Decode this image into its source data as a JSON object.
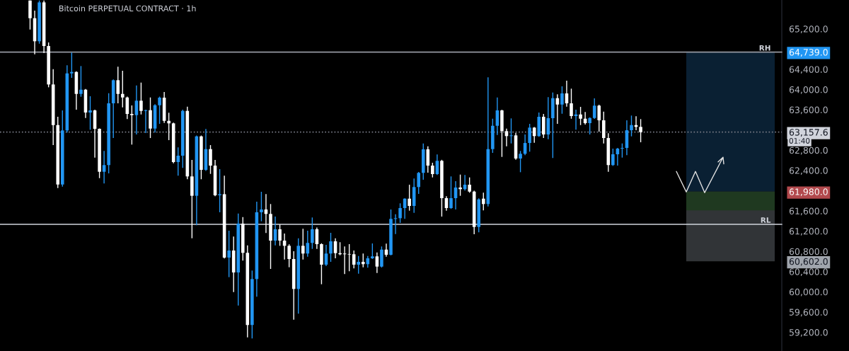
{
  "chart_data": {
    "type": "candlestick",
    "title": "Bitcoin PERPETUAL CONTRACT · 1h",
    "categories": [
      null,
      null,
      null,
      null,
      null,
      null,
      null,
      null,
      null,
      null,
      null,
      null,
      null,
      null,
      null,
      null,
      null,
      null,
      null,
      null,
      null,
      null,
      null,
      null,
      null,
      null,
      null,
      null,
      null,
      null,
      null,
      null,
      null,
      null,
      null,
      null,
      null,
      null,
      null,
      null,
      null,
      null,
      null,
      null,
      null,
      null,
      null,
      null,
      null,
      null,
      null,
      null,
      null,
      null,
      null,
      null,
      null,
      null,
      null,
      null,
      null,
      null,
      null,
      null,
      null,
      null,
      null,
      null,
      null,
      null,
      null,
      null,
      null,
      null,
      null,
      null,
      null,
      null,
      null,
      null,
      null,
      null,
      null,
      null,
      null,
      null,
      null,
      null,
      null,
      null,
      null,
      null,
      null,
      null,
      null,
      null,
      null,
      null,
      null,
      null,
      null,
      null,
      null,
      null,
      null,
      null,
      null,
      null,
      null,
      null,
      null,
      null,
      null,
      null,
      null,
      null,
      null,
      null,
      null,
      null,
      null,
      null,
      null,
      null,
      null,
      null,
      null,
      null,
      null,
      null,
      null,
      null,
      null,
      null,
      null,
      null,
      null,
      null,
      null,
      null,
      null,
      null,
      null,
      null,
      null,
      null,
      null,
      null,
      null,
      null,
      null,
      null,
      null,
      null,
      null,
      null,
      null,
      null,
      null,
      null,
      null,
      null,
      null,
      null,
      null,
      null,
      null,
      null,
      null
    ],
    "ohlc": [
      null,
      null,
      null,
      null,
      null,
      null,
      [
        65760,
        65760,
        65186,
        65410
      ],
      [
        65410,
        65560,
        64696,
        64954
      ],
      [
        64954,
        65760,
        64906,
        65723
      ],
      [
        65723,
        65760,
        64720,
        64860
      ],
      [
        64860,
        64930,
        64044,
        64100
      ],
      [
        64100,
        64403,
        62901,
        63297
      ],
      [
        63297,
        63461,
        62052,
        62122
      ],
      [
        62122,
        63587,
        62080,
        63191
      ],
      [
        63191,
        64478,
        63150,
        64319
      ],
      [
        64319,
        64730,
        64230,
        64347
      ],
      [
        64347,
        64360,
        63601,
        63913
      ],
      [
        63913,
        64464,
        63857,
        63997
      ],
      [
        63997,
        64010,
        63437,
        63545
      ],
      [
        63545,
        63867,
        63205,
        63587
      ],
      [
        63587,
        63600,
        62654,
        63223
      ],
      [
        63223,
        63230,
        62248,
        62374
      ],
      [
        62374,
        62785,
        62142,
        62506
      ],
      [
        62506,
        63927,
        62342,
        63727
      ],
      [
        63727,
        64200,
        63041,
        64184
      ],
      [
        64184,
        64450,
        63727,
        63913
      ],
      [
        63913,
        64370,
        63647,
        63843
      ],
      [
        63843,
        63860,
        63415,
        63517
      ],
      [
        63517,
        63685,
        62911,
        63494
      ],
      [
        63494,
        64081,
        63111,
        63779
      ],
      [
        63779,
        64137,
        63507,
        63577
      ],
      [
        63577,
        63600,
        63139,
        63591
      ],
      [
        63591,
        63843,
        63041,
        63228
      ],
      [
        63228,
        63710,
        63149,
        63689
      ],
      [
        63689,
        63860,
        63321,
        63839
      ],
      [
        63839,
        63951,
        63340,
        63381
      ],
      [
        63381,
        63541,
        62999,
        63331
      ],
      [
        63331,
        63345,
        62542,
        62566
      ],
      [
        62566,
        62856,
        62296,
        62692
      ],
      [
        62692,
        63600,
        62450,
        63577
      ],
      [
        63577,
        63661,
        62226,
        62282
      ],
      [
        62282,
        62608,
        61059,
        61899
      ],
      [
        61899,
        63090,
        61316,
        63074
      ],
      [
        63074,
        63090,
        62226,
        62412
      ],
      [
        62412,
        63219,
        62390,
        62822
      ],
      [
        62822,
        62901,
        62332,
        62496
      ],
      [
        62496,
        62608,
        61890,
        61909
      ],
      [
        61909,
        62426,
        61573,
        61930
      ],
      [
        61930,
        62296,
        60660,
        60677
      ],
      [
        60677,
        61209,
        60290,
        60817
      ],
      [
        60817,
        61093,
        59996,
        60383
      ],
      [
        60383,
        61549,
        59730,
        61349
      ],
      [
        61349,
        61479,
        60617,
        60771
      ],
      [
        60771,
        60919,
        59100,
        59344
      ],
      [
        59344,
        60421,
        59078,
        60253
      ],
      [
        60253,
        61782,
        59903,
        61573
      ],
      [
        61573,
        61978,
        61395,
        61628
      ],
      [
        61628,
        61932,
        61162,
        61540
      ],
      [
        61540,
        61736,
        60453,
        61013
      ],
      [
        61013,
        61488,
        60919,
        61237
      ],
      [
        61237,
        61331,
        60910,
        61013
      ],
      [
        61013,
        61153,
        60639,
        60910
      ],
      [
        60910,
        60940,
        60486,
        60649
      ],
      [
        60649,
        60803,
        59450,
        60057
      ],
      [
        60057,
        61059,
        59568,
        60910
      ],
      [
        60910,
        61246,
        60639,
        60757
      ],
      [
        60757,
        61209,
        60695,
        60967
      ],
      [
        60967,
        61470,
        60849,
        61237
      ],
      [
        61237,
        61270,
        60849,
        60943
      ],
      [
        60943,
        60960,
        60150,
        60537
      ],
      [
        60537,
        60929,
        60510,
        60757
      ],
      [
        60757,
        61167,
        60593,
        60999
      ],
      [
        60999,
        61059,
        60663,
        60765
      ],
      [
        60765,
        60981,
        60723,
        60743
      ],
      [
        60757,
        60897,
        60351,
        60743
      ],
      [
        60748,
        60943,
        60407,
        60738
      ],
      [
        60743,
        60817,
        60463,
        60537
      ],
      [
        60537,
        60710,
        60360,
        60593
      ],
      [
        60593,
        60757,
        60486,
        60547
      ],
      [
        60547,
        60710,
        60477,
        60663
      ],
      [
        60663,
        60957,
        60650,
        60701
      ],
      [
        60701,
        60780,
        60374,
        60499
      ],
      [
        60499,
        60897,
        60480,
        60835
      ],
      [
        60835,
        60952,
        60695,
        60733
      ],
      [
        60733,
        61628,
        60720,
        61442
      ],
      [
        61442,
        61535,
        61143,
        61456
      ],
      [
        61456,
        61750,
        61363,
        61656
      ],
      [
        61656,
        61850,
        61442,
        61842
      ],
      [
        61842,
        62118,
        61605,
        61698
      ],
      [
        61698,
        62240,
        61563,
        62072
      ],
      [
        62072,
        62370,
        61936,
        62352
      ],
      [
        62352,
        62934,
        62216,
        62818
      ],
      [
        62818,
        62878,
        62356,
        62496
      ],
      [
        62496,
        62552,
        62262,
        62328
      ],
      [
        62328,
        62716,
        62310,
        62590
      ],
      [
        62590,
        62610,
        61488,
        61852
      ],
      [
        61852,
        61890,
        61605,
        61656
      ],
      [
        61656,
        62282,
        61640,
        61852
      ],
      [
        61852,
        62188,
        61628,
        62062
      ],
      [
        62062,
        62318,
        61899,
        62030
      ],
      [
        62030,
        62310,
        62002,
        62118
      ],
      [
        62118,
        62262,
        61960,
        61982
      ],
      [
        61982,
        62000,
        61139,
        61283
      ],
      [
        61283,
        61850,
        61176,
        61828
      ],
      [
        61842,
        61960,
        61610,
        61736
      ],
      [
        61736,
        64240,
        61689,
        62822
      ],
      [
        62822,
        63423,
        62747,
        63283
      ],
      [
        63283,
        63843,
        63102,
        63587
      ],
      [
        63587,
        63600,
        62668,
        63177
      ],
      [
        63177,
        63227,
        62878,
        63079
      ],
      [
        63079,
        63429,
        62934,
        63093
      ],
      [
        63093,
        63143,
        62612,
        62636
      ],
      [
        62636,
        62785,
        62365,
        62729
      ],
      [
        62729,
        63111,
        62701,
        62943
      ],
      [
        62943,
        63321,
        62771,
        63247
      ],
      [
        63247,
        63260,
        62948,
        63079
      ],
      [
        63079,
        63545,
        63065,
        63461
      ],
      [
        63461,
        63517,
        63041,
        63111
      ],
      [
        63111,
        63849,
        63018,
        63433
      ],
      [
        63433,
        63941,
        62646,
        63829
      ],
      [
        63829,
        63905,
        63321,
        63703
      ],
      [
        63703,
        64063,
        63521,
        63923
      ],
      [
        63923,
        64175,
        63661,
        63727
      ],
      [
        63727,
        64017,
        63423,
        63475
      ],
      [
        63475,
        63601,
        63205,
        63507
      ],
      [
        63507,
        63657,
        63297,
        63423
      ],
      [
        63423,
        63555,
        63307,
        63335
      ],
      [
        63335,
        63450,
        63111,
        63437
      ],
      [
        63437,
        63825,
        63420,
        63681
      ],
      [
        63681,
        63700,
        63167,
        63391
      ],
      [
        63391,
        63563,
        62934,
        63041
      ],
      [
        63041,
        63135,
        62374,
        62506
      ],
      [
        62506,
        62831,
        62490,
        62720
      ],
      [
        62720,
        62845,
        62496,
        62831
      ],
      [
        62831,
        62934,
        62654,
        62845
      ],
      [
        62845,
        63391,
        62701,
        63195
      ],
      [
        63195,
        63485,
        63074,
        63297
      ],
      [
        63297,
        63471,
        63195,
        63261
      ],
      [
        63261,
        63415,
        62957,
        63157.6
      ],
      null,
      null,
      null,
      null,
      null,
      null,
      null,
      null,
      null,
      null,
      null,
      null,
      null,
      null,
      null,
      null,
      null,
      null,
      null,
      null,
      null,
      null,
      null,
      null,
      null,
      null,
      null,
      null,
      null,
      null
    ],
    "colors": [
      null,
      null,
      null,
      null,
      null,
      null,
      "#ffffff",
      "#ffffff",
      "#2196f3",
      "#ffffff",
      "#ffffff",
      "#ffffff",
      "#ffffff",
      "#2196f3",
      "#2196f3",
      "#2196f3",
      "#ffffff",
      "#2196f3",
      "#ffffff",
      "#2196f3",
      "#ffffff",
      "#ffffff",
      "#2196f3",
      "#2196f3",
      "#2196f3",
      "#ffffff",
      "#ffffff",
      "#ffffff",
      "#ffffff",
      "#2196f3",
      "#ffffff",
      "#2196f3",
      "#ffffff",
      "#2196f3",
      "#2196f3",
      "#ffffff",
      "#ffffff",
      "#ffffff",
      "#2196f3",
      "#2196f3",
      "#ffffff",
      "#ffffff",
      "#2196f3",
      "#ffffff",
      "#2196f3",
      "#ffffff",
      "#ffffff",
      "#2196f3",
      "#ffffff",
      "#2196f3",
      "#ffffff",
      "#2196f3",
      "#ffffff",
      "#ffffff",
      "#2196f3",
      "#2196f3",
      "#2196f3",
      "#ffffff",
      "#ffffff",
      "#2196f3",
      "#ffffff",
      "#ffffff",
      "#ffffff",
      "#ffffff",
      "#2196f3",
      "#ffffff",
      "#2196f3",
      "#2196f3",
      "#ffffff",
      "#ffffff",
      "#2196f3",
      "#2196f3",
      "#ffffff",
      "#ffffff",
      "#ffffff",
      "#ffffff",
      "#ffffff",
      "#2196f3",
      "#ffffff",
      "#2196f3",
      "#2196f3",
      "#ffffff",
      "#2196f3",
      "#ffffff",
      "#2196f3",
      "#2196f3",
      "#2196f3",
      "#2196f3",
      "#ffffff",
      "#2196f3",
      "#2196f3",
      "#2196f3",
      "#ffffff",
      "#ffffff",
      "#2196f3",
      "#ffffff",
      "#ffffff",
      "#2196f3",
      "#2196f3",
      "#ffffff",
      "#2196f3",
      "#ffffff",
      "#ffffff",
      "#2196f3",
      "#ffffff",
      "#2196f3",
      "#2196f3",
      "#2196f3",
      "#ffffff",
      "#ffffff",
      "#2196f3",
      "#ffffff",
      "#2196f3",
      "#2196f3",
      "#2196f3",
      "#ffffff",
      "#2196f3",
      "#ffffff",
      "#2196f3",
      "#2196f3",
      "#ffffff",
      "#2196f3",
      "#ffffff",
      "#ffffff",
      "#2196f3",
      "#ffffff",
      "#ffffff",
      "#2196f3",
      "#2196f3",
      "#ffffff",
      "#ffffff",
      "#ffffff",
      "#2196f3",
      "#2196f3",
      "#2196f3",
      "#2196f3",
      "#2196f3",
      "#ffffff",
      "#ffffff",
      null,
      null,
      null,
      null,
      null,
      null,
      null,
      null,
      null,
      null,
      null,
      null,
      null,
      null,
      null,
      null,
      null,
      null,
      null,
      null,
      null,
      null,
      null,
      null,
      null,
      null,
      null,
      null,
      null,
      null
    ],
    "ylim": [
      58830,
      65770
    ],
    "yticks": [
      {
        "value": 59200,
        "label": "59,200.0"
      },
      {
        "value": 59600,
        "label": "59,600.0"
      },
      {
        "value": 60000,
        "label": "60,000.0"
      },
      {
        "value": 60400,
        "label": "60,400.0"
      },
      {
        "value": 60602,
        "label": "60,602.0"
      },
      {
        "value": 60800,
        "label": "60,800.0"
      },
      {
        "value": 61200,
        "label": "61,200.0"
      },
      {
        "value": 61600,
        "label": "61,600.0"
      },
      {
        "value": 61980,
        "label": "61,980.0"
      },
      {
        "value": 62400,
        "label": "62,400.0"
      },
      {
        "value": 62800,
        "label": "62,800.0"
      },
      {
        "value": 63157.6,
        "label": "63,157.6"
      },
      {
        "value": 63600,
        "label": "63,600.0"
      },
      {
        "value": 64000,
        "label": "64,000.0"
      },
      {
        "value": 64400,
        "label": "64,400.0"
      },
      {
        "value": 64739,
        "label": "64,739.0"
      },
      {
        "value": 65200,
        "label": "65,200.0"
      }
    ],
    "tick_labels": "y",
    "grid": false,
    "ref_lines": [
      {
        "axis": "y",
        "value": 64739,
        "label": "RH",
        "color": "#9598a1"
      },
      {
        "axis": "y",
        "value": 61335,
        "label": "RL",
        "color": "#d1d4dc"
      },
      {
        "axis": "y",
        "value": 63157.6,
        "color": "#787b86",
        "line_style": "dotted"
      }
    ],
    "bands": [
      {
        "axis": "y",
        "from": 61980,
        "to": 64739,
        "color": "#0b2339"
      },
      {
        "axis": "y",
        "from": 60602,
        "to": 61980,
        "color": "#363a3d"
      },
      {
        "axis": "y",
        "from": 61610,
        "to": 61980,
        "color": "#1e3a1e"
      }
    ],
    "annotations": [
      "01:40"
    ]
  }
}
